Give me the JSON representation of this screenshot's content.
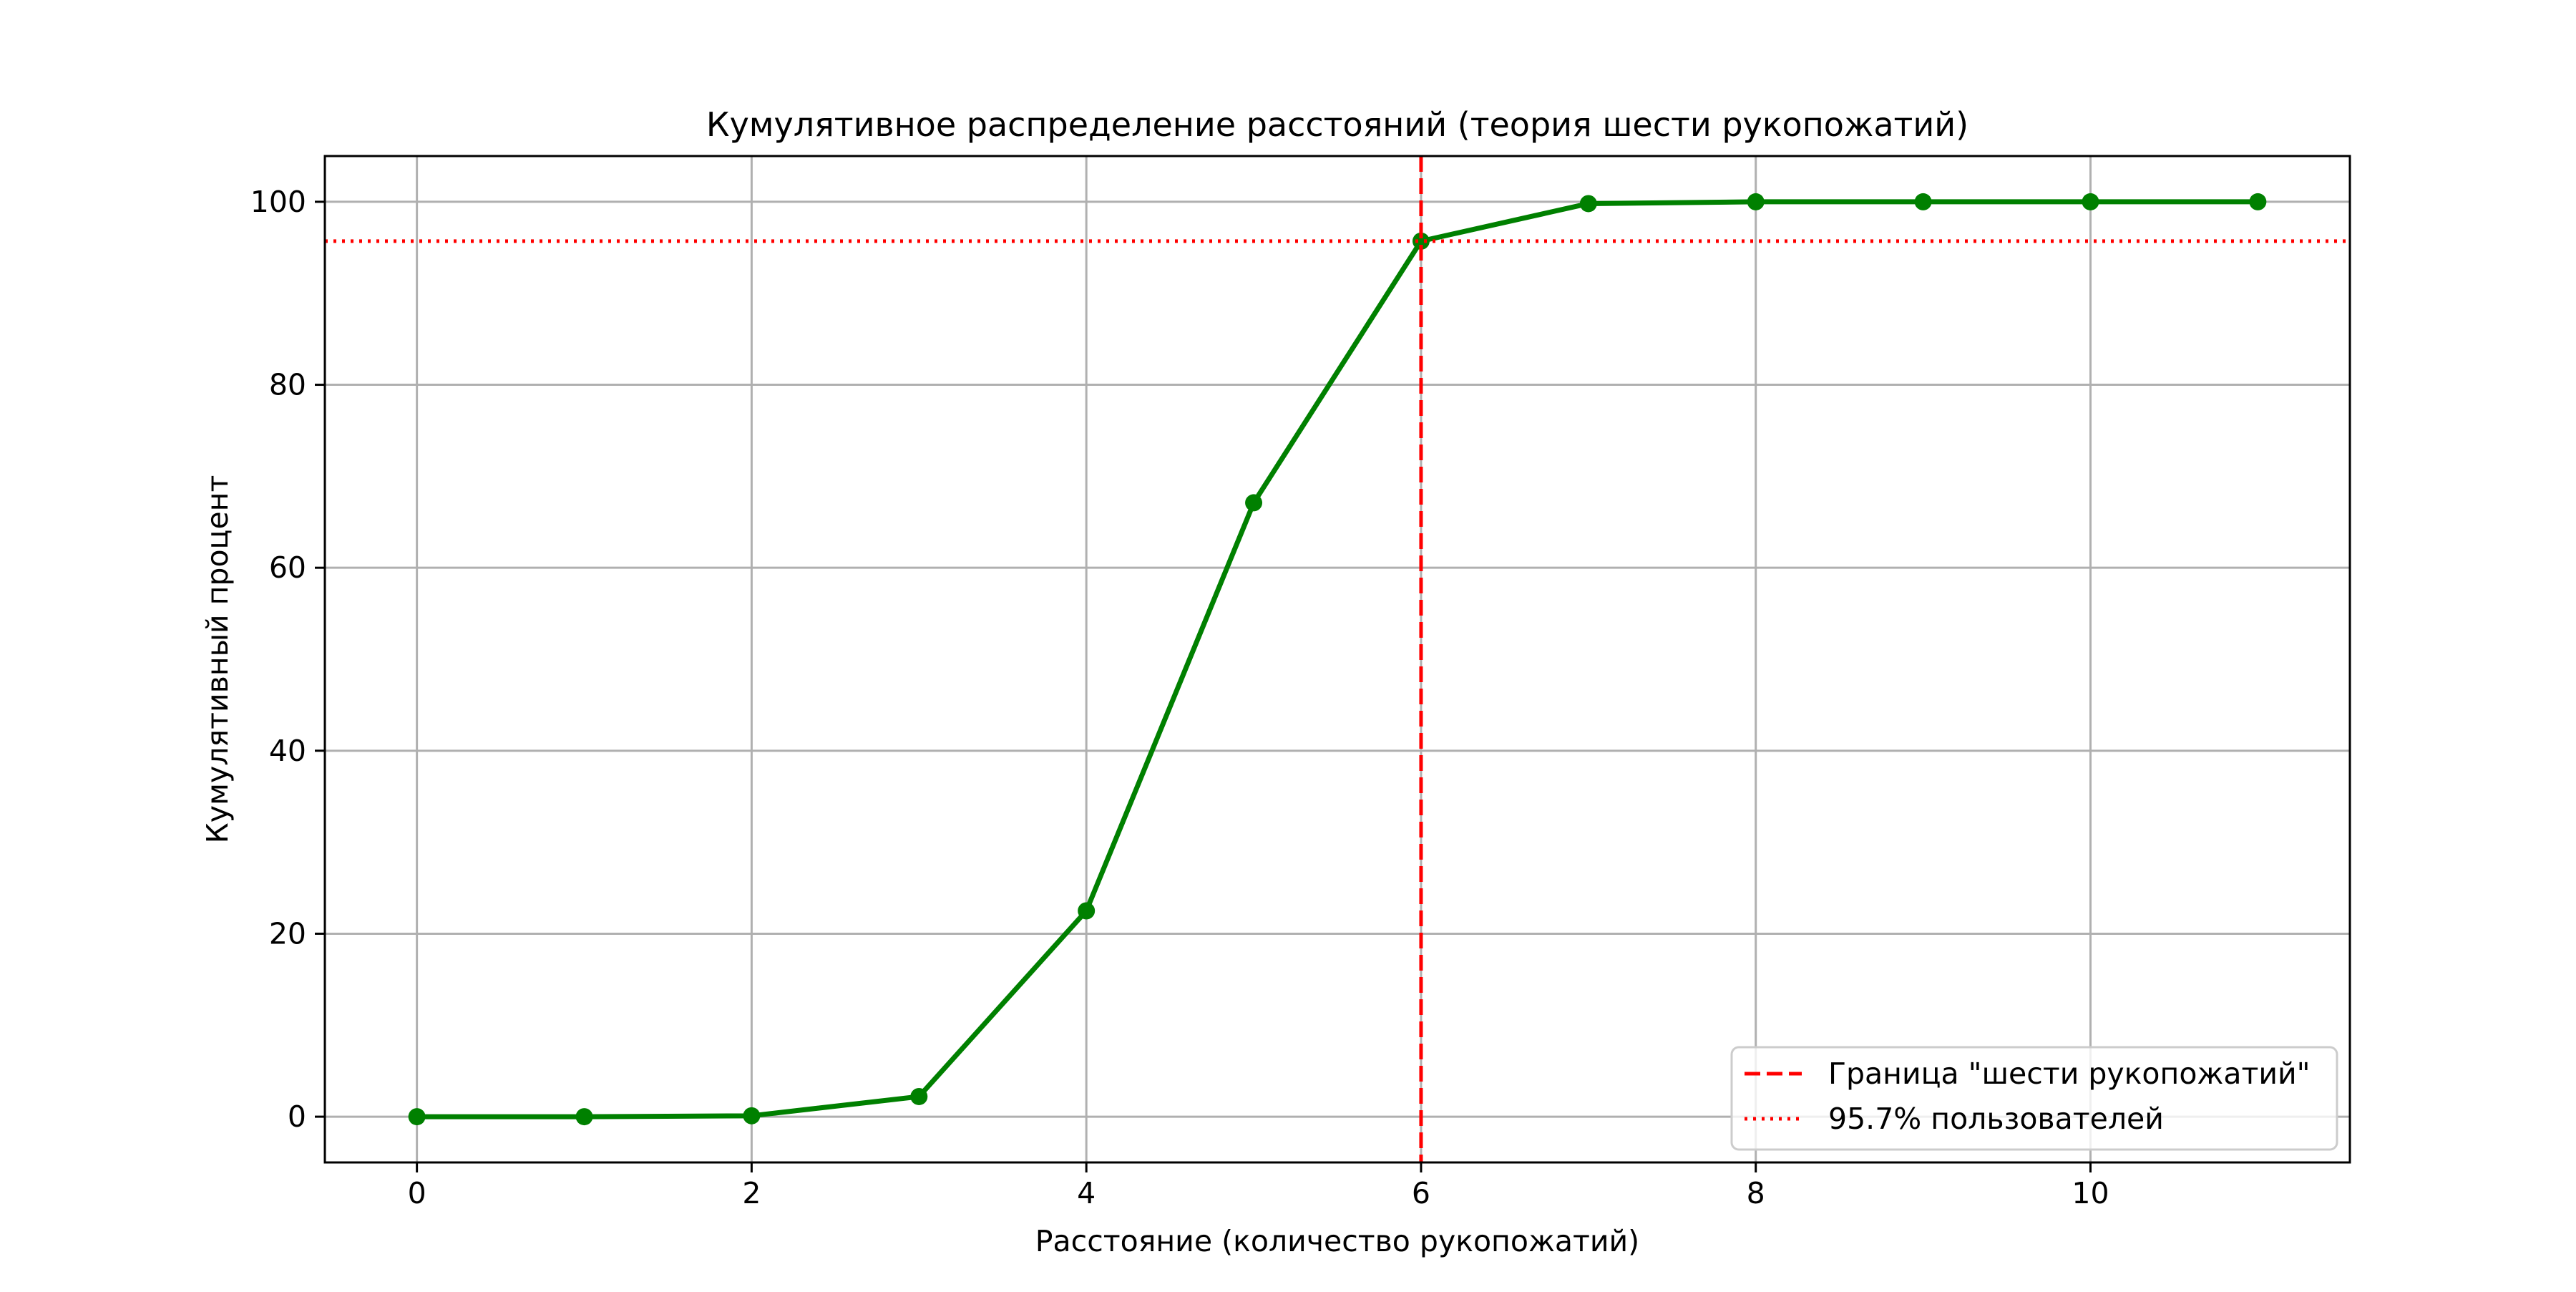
{
  "chart_data": {
    "type": "line",
    "title": "Кумулятивное распределение расстояний (теория шести рукопожатий)",
    "xlabel": "Расстояние (количество рукопожатий)",
    "ylabel": "Кумулятивный процент",
    "xlim": [
      -0.55,
      11.55
    ],
    "ylim": [
      -5,
      105
    ],
    "xticks": [
      0,
      2,
      4,
      6,
      8,
      10
    ],
    "yticks": [
      0,
      20,
      40,
      60,
      80,
      100
    ],
    "grid": true,
    "series": [
      {
        "x": [
          0,
          1,
          2,
          3,
          4,
          5,
          6,
          7,
          8,
          9,
          10,
          11
        ],
        "values": [
          0,
          0,
          0.1,
          2.2,
          22.5,
          67.1,
          95.7,
          99.8,
          100,
          100,
          100,
          100
        ],
        "color": "#008000",
        "marker": "circle"
      }
    ],
    "reference_lines": [
      {
        "orientation": "vertical",
        "value": 6,
        "style": "dashed",
        "color": "#ff0000",
        "label": "Граница \"шести рукопожатий\""
      },
      {
        "orientation": "horizontal",
        "value": 95.7,
        "style": "dotted",
        "color": "#ff0000",
        "label": "95.7% пользователей"
      }
    ],
    "legend": {
      "position": "lower-right"
    }
  }
}
